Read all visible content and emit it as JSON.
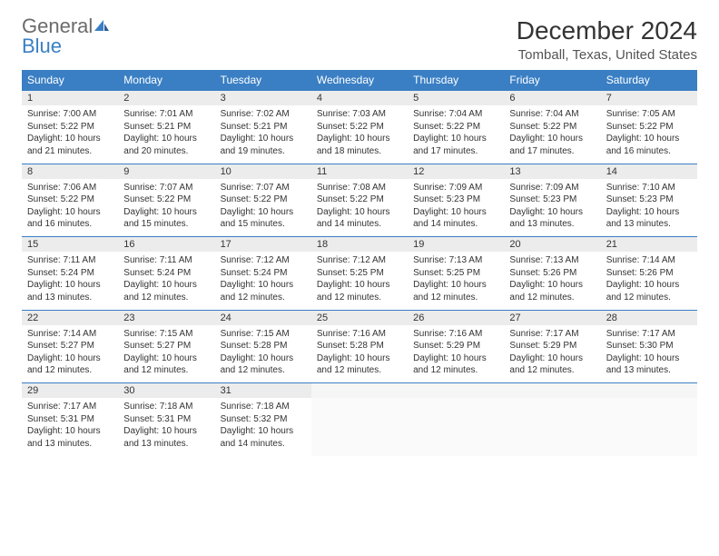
{
  "logo": {
    "line1": "General",
    "line2": "Blue"
  },
  "title": "December 2024",
  "location": "Tomball, Texas, United States",
  "weekdays": [
    "Sunday",
    "Monday",
    "Tuesday",
    "Wednesday",
    "Thursday",
    "Friday",
    "Saturday"
  ],
  "header_bg": "#3a7fc4",
  "daynum_bg": "#ececec",
  "border_color": "#3a7fc4",
  "rows": [
    [
      {
        "d": "1",
        "sr": "7:00 AM",
        "ss": "5:22 PM",
        "dl": "10 hours and 21 minutes."
      },
      {
        "d": "2",
        "sr": "7:01 AM",
        "ss": "5:21 PM",
        "dl": "10 hours and 20 minutes."
      },
      {
        "d": "3",
        "sr": "7:02 AM",
        "ss": "5:21 PM",
        "dl": "10 hours and 19 minutes."
      },
      {
        "d": "4",
        "sr": "7:03 AM",
        "ss": "5:22 PM",
        "dl": "10 hours and 18 minutes."
      },
      {
        "d": "5",
        "sr": "7:04 AM",
        "ss": "5:22 PM",
        "dl": "10 hours and 17 minutes."
      },
      {
        "d": "6",
        "sr": "7:04 AM",
        "ss": "5:22 PM",
        "dl": "10 hours and 17 minutes."
      },
      {
        "d": "7",
        "sr": "7:05 AM",
        "ss": "5:22 PM",
        "dl": "10 hours and 16 minutes."
      }
    ],
    [
      {
        "d": "8",
        "sr": "7:06 AM",
        "ss": "5:22 PM",
        "dl": "10 hours and 16 minutes."
      },
      {
        "d": "9",
        "sr": "7:07 AM",
        "ss": "5:22 PM",
        "dl": "10 hours and 15 minutes."
      },
      {
        "d": "10",
        "sr": "7:07 AM",
        "ss": "5:22 PM",
        "dl": "10 hours and 15 minutes."
      },
      {
        "d": "11",
        "sr": "7:08 AM",
        "ss": "5:22 PM",
        "dl": "10 hours and 14 minutes."
      },
      {
        "d": "12",
        "sr": "7:09 AM",
        "ss": "5:23 PM",
        "dl": "10 hours and 14 minutes."
      },
      {
        "d": "13",
        "sr": "7:09 AM",
        "ss": "5:23 PM",
        "dl": "10 hours and 13 minutes."
      },
      {
        "d": "14",
        "sr": "7:10 AM",
        "ss": "5:23 PM",
        "dl": "10 hours and 13 minutes."
      }
    ],
    [
      {
        "d": "15",
        "sr": "7:11 AM",
        "ss": "5:24 PM",
        "dl": "10 hours and 13 minutes."
      },
      {
        "d": "16",
        "sr": "7:11 AM",
        "ss": "5:24 PM",
        "dl": "10 hours and 12 minutes."
      },
      {
        "d": "17",
        "sr": "7:12 AM",
        "ss": "5:24 PM",
        "dl": "10 hours and 12 minutes."
      },
      {
        "d": "18",
        "sr": "7:12 AM",
        "ss": "5:25 PM",
        "dl": "10 hours and 12 minutes."
      },
      {
        "d": "19",
        "sr": "7:13 AM",
        "ss": "5:25 PM",
        "dl": "10 hours and 12 minutes."
      },
      {
        "d": "20",
        "sr": "7:13 AM",
        "ss": "5:26 PM",
        "dl": "10 hours and 12 minutes."
      },
      {
        "d": "21",
        "sr": "7:14 AM",
        "ss": "5:26 PM",
        "dl": "10 hours and 12 minutes."
      }
    ],
    [
      {
        "d": "22",
        "sr": "7:14 AM",
        "ss": "5:27 PM",
        "dl": "10 hours and 12 minutes."
      },
      {
        "d": "23",
        "sr": "7:15 AM",
        "ss": "5:27 PM",
        "dl": "10 hours and 12 minutes."
      },
      {
        "d": "24",
        "sr": "7:15 AM",
        "ss": "5:28 PM",
        "dl": "10 hours and 12 minutes."
      },
      {
        "d": "25",
        "sr": "7:16 AM",
        "ss": "5:28 PM",
        "dl": "10 hours and 12 minutes."
      },
      {
        "d": "26",
        "sr": "7:16 AM",
        "ss": "5:29 PM",
        "dl": "10 hours and 12 minutes."
      },
      {
        "d": "27",
        "sr": "7:17 AM",
        "ss": "5:29 PM",
        "dl": "10 hours and 12 minutes."
      },
      {
        "d": "28",
        "sr": "7:17 AM",
        "ss": "5:30 PM",
        "dl": "10 hours and 13 minutes."
      }
    ],
    [
      {
        "d": "29",
        "sr": "7:17 AM",
        "ss": "5:31 PM",
        "dl": "10 hours and 13 minutes."
      },
      {
        "d": "30",
        "sr": "7:18 AM",
        "ss": "5:31 PM",
        "dl": "10 hours and 13 minutes."
      },
      {
        "d": "31",
        "sr": "7:18 AM",
        "ss": "5:32 PM",
        "dl": "10 hours and 14 minutes."
      },
      null,
      null,
      null,
      null
    ]
  ],
  "labels": {
    "sunrise": "Sunrise:",
    "sunset": "Sunset:",
    "daylight": "Daylight:"
  }
}
